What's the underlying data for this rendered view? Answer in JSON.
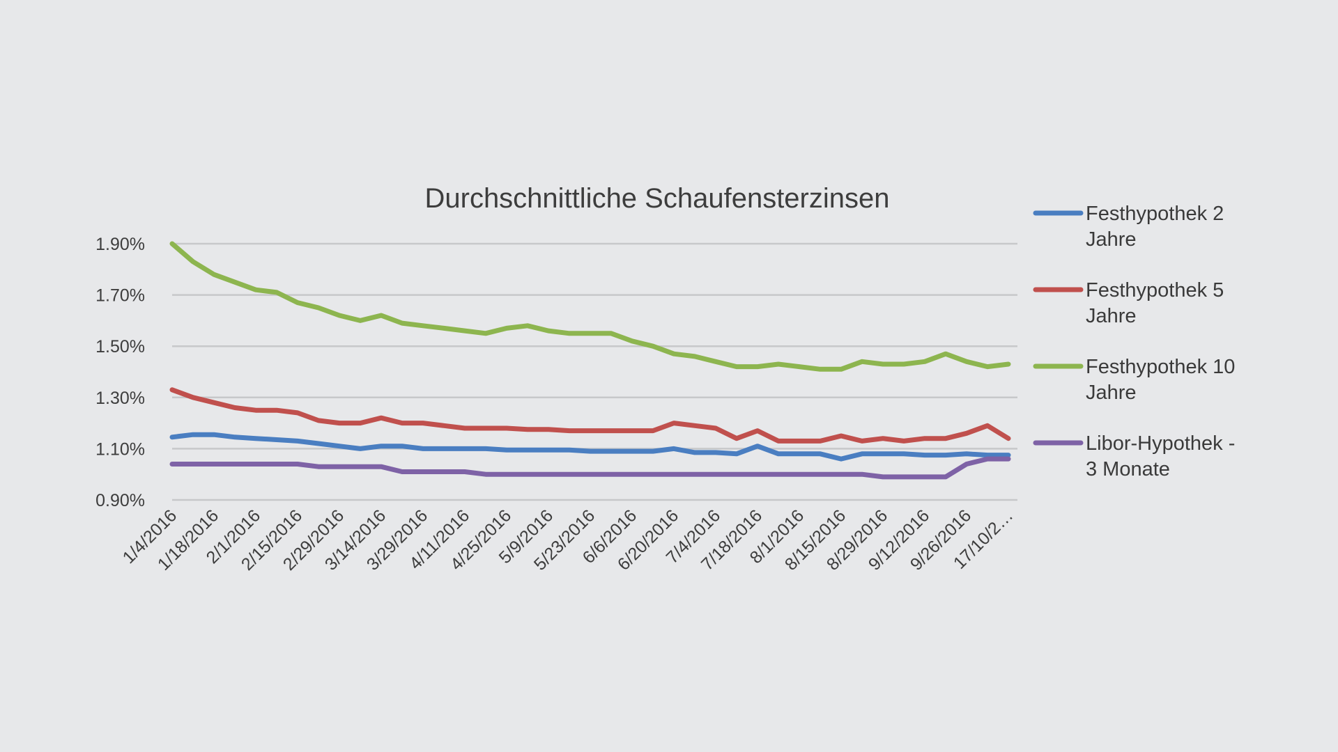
{
  "chart_data": {
    "type": "line",
    "title": "Durchschnittliche Schaufensterzinsen",
    "xlabel": "",
    "ylabel": "",
    "ylim": [
      0.009,
      0.019
    ],
    "yticks": [
      0.009,
      0.011,
      0.013,
      0.015,
      0.017,
      0.019
    ],
    "yticklabels": [
      "0.90%",
      "1.10%",
      "1.30%",
      "1.50%",
      "1.70%",
      "1.90%"
    ],
    "grid": true,
    "legend_position": "right",
    "x_tick_labels": [
      "1/4/2016",
      "1/18/2016",
      "2/1/2016",
      "2/15/2016",
      "2/29/2016",
      "3/14/2016",
      "3/29/2016",
      "4/11/2016",
      "4/25/2016",
      "5/9/2016",
      "5/23/2016",
      "6/6/2016",
      "6/20/2016",
      "7/4/2016",
      "7/18/2016",
      "8/1/2016",
      "8/15/2016",
      "8/29/2016",
      "9/12/2016",
      "9/26/2016",
      "17/10/2…"
    ],
    "x": [
      "1/4/2016",
      "1/11/2016",
      "1/18/2016",
      "1/25/2016",
      "2/1/2016",
      "2/8/2016",
      "2/15/2016",
      "2/22/2016",
      "2/29/2016",
      "3/7/2016",
      "3/14/2016",
      "3/21/2016",
      "3/29/2016",
      "4/4/2016",
      "4/11/2016",
      "4/18/2016",
      "4/25/2016",
      "5/2/2016",
      "5/9/2016",
      "5/16/2016",
      "5/23/2016",
      "5/30/2016",
      "6/6/2016",
      "6/13/2016",
      "6/20/2016",
      "6/27/2016",
      "7/4/2016",
      "7/11/2016",
      "7/18/2016",
      "7/25/2016",
      "8/1/2016",
      "8/8/2016",
      "8/15/2016",
      "8/22/2016",
      "8/29/2016",
      "9/5/2016",
      "9/12/2016",
      "9/19/2016",
      "9/26/2016",
      "10/3/2016",
      "17/10/2…"
    ],
    "series": [
      {
        "name": "Festhypothek 2 Jahre",
        "color": "#4a7ec1",
        "values": [
          0.01145,
          0.01155,
          0.01155,
          0.01145,
          0.0114,
          0.01135,
          0.0113,
          0.0112,
          0.0111,
          0.011,
          0.0111,
          0.0111,
          0.011,
          0.011,
          0.011,
          0.011,
          0.01095,
          0.01095,
          0.01095,
          0.01095,
          0.0109,
          0.0109,
          0.0109,
          0.0109,
          0.011,
          0.01085,
          0.01085,
          0.0108,
          0.0111,
          0.0108,
          0.0108,
          0.0108,
          0.0106,
          0.0108,
          0.0108,
          0.0108,
          0.01075,
          0.01075,
          0.0108,
          0.01075,
          0.01075
        ]
      },
      {
        "name": "Festhypothek 5 Jahre",
        "color": "#c0504d",
        "values": [
          0.0133,
          0.013,
          0.0128,
          0.0126,
          0.0125,
          0.0125,
          0.0124,
          0.0121,
          0.012,
          0.012,
          0.0122,
          0.012,
          0.012,
          0.0119,
          0.0118,
          0.0118,
          0.0118,
          0.01175,
          0.01175,
          0.0117,
          0.0117,
          0.0117,
          0.0117,
          0.0117,
          0.012,
          0.0119,
          0.0118,
          0.0114,
          0.0117,
          0.0113,
          0.0113,
          0.0113,
          0.0115,
          0.0113,
          0.0114,
          0.0113,
          0.0114,
          0.0114,
          0.0116,
          0.0119,
          0.0114
        ]
      },
      {
        "name": "Festhypothek 10 Jahre",
        "color": "#8db54f",
        "values": [
          0.019,
          0.0183,
          0.0178,
          0.0175,
          0.0172,
          0.0171,
          0.0167,
          0.0165,
          0.0162,
          0.016,
          0.0162,
          0.0159,
          0.0158,
          0.0157,
          0.0156,
          0.0155,
          0.0157,
          0.0158,
          0.0156,
          0.0155,
          0.0155,
          0.0155,
          0.0152,
          0.015,
          0.0147,
          0.0146,
          0.0144,
          0.0142,
          0.0142,
          0.0143,
          0.0142,
          0.0141,
          0.0141,
          0.0144,
          0.0143,
          0.0143,
          0.0144,
          0.0147,
          0.0144,
          0.0142,
          0.0143
        ]
      },
      {
        "name": "Libor-Hypothek - 3 Monate",
        "color": "#7e62a6",
        "values": [
          0.0104,
          0.0104,
          0.0104,
          0.0104,
          0.0104,
          0.0104,
          0.0104,
          0.0103,
          0.0103,
          0.0103,
          0.0103,
          0.0101,
          0.0101,
          0.0101,
          0.0101,
          0.01,
          0.01,
          0.01,
          0.01,
          0.01,
          0.01,
          0.01,
          0.01,
          0.01,
          0.01,
          0.01,
          0.01,
          0.01,
          0.01,
          0.01,
          0.01,
          0.01,
          0.01,
          0.01,
          0.0099,
          0.0099,
          0.0099,
          0.0099,
          0.0104,
          0.0106,
          0.0106
        ]
      }
    ],
    "legend": [
      {
        "line1": "Festhypothek 2",
        "line2": "Jahre"
      },
      {
        "line1": "Festhypothek 5",
        "line2": "Jahre"
      },
      {
        "line1": "Festhypothek 10",
        "line2": "Jahre"
      },
      {
        "line1": "Libor-Hypothek -",
        "line2": "3 Monate"
      }
    ]
  }
}
